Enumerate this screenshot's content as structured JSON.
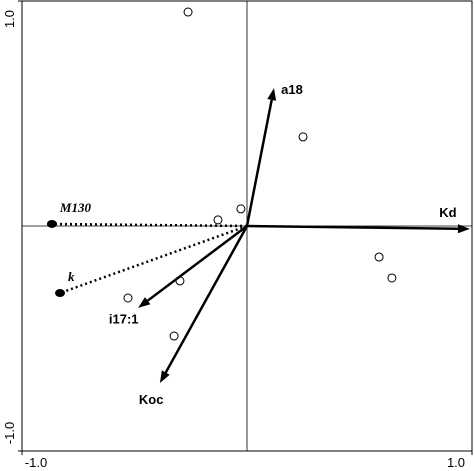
{
  "chart_data": {
    "type": "biplot",
    "xlim": [
      -1,
      1
    ],
    "ylim": [
      -1,
      1
    ],
    "xticks": [
      {
        "value": -1,
        "label": "-1.0"
      },
      {
        "value": 1,
        "label": "1.0"
      }
    ],
    "yticks": [
      {
        "value": -1,
        "label": "-1.0"
      },
      {
        "value": 1,
        "label": "1.0"
      }
    ],
    "points": {
      "x": [
        -0.262,
        0.249,
        -0.027,
        -0.129,
        -0.298,
        -0.529,
        -0.324,
        0.587,
        0.644
      ],
      "y": [
        0.951,
        0.396,
        0.076,
        0.027,
        -0.244,
        -0.32,
        -0.489,
        -0.138,
        -0.231
      ]
    },
    "vectors": [
      {
        "label": "a18",
        "x": 0.12,
        "y": 0.613,
        "style": "solid"
      },
      {
        "label": "Kd",
        "x": 0.991,
        "y": -0.013,
        "style": "solid"
      },
      {
        "label": "i17:1",
        "x": -0.484,
        "y": -0.364,
        "style": "solid"
      },
      {
        "label": "Koc",
        "x": -0.387,
        "y": -0.698,
        "style": "solid"
      },
      {
        "label": "M130",
        "x": -0.867,
        "y": 0.009,
        "style": "dotted"
      },
      {
        "label": "k",
        "x": -0.831,
        "y": -0.298,
        "style": "dotted"
      }
    ],
    "color": "#000000"
  }
}
